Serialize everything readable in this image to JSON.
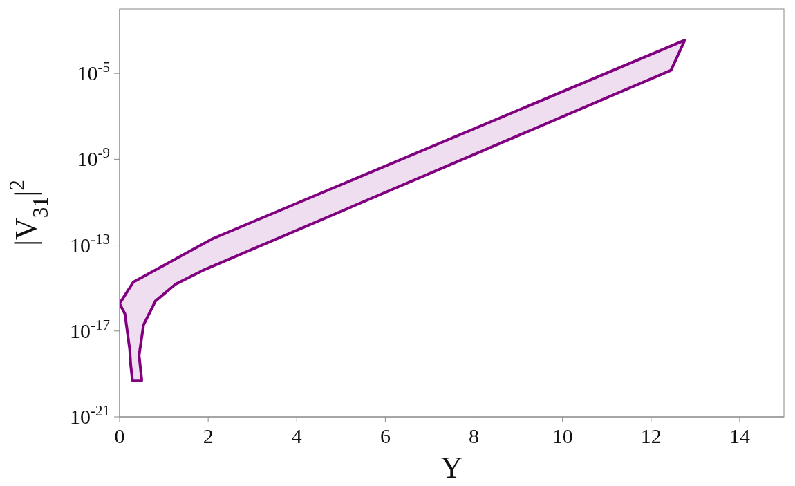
{
  "chart_data": {
    "type": "area",
    "xlabel": "Y",
    "ylabel": "|V$_{31}$|$^{2}$",
    "xlim": [
      0,
      15
    ],
    "xticks": [
      0,
      2,
      4,
      6,
      8,
      10,
      12,
      14
    ],
    "ylim": [
      1e-21,
      0.01
    ],
    "yticks": [
      {
        "value": 1e-21,
        "label": "10$^{-21}$"
      },
      {
        "value": 1e-17,
        "label": "10$^{-17}$"
      },
      {
        "value": 1e-13,
        "label": "10$^{-13}$"
      },
      {
        "value": 1e-09,
        "label": "10$^{-9}$"
      },
      {
        "value": 1e-05,
        "label": "10$^{-5}$"
      }
    ],
    "log": "y",
    "marker": "none",
    "line_style": "solid",
    "series": [
      {
        "color": "#800080",
        "x": [
          0,
          0.31,
          2.1,
          12.76,
          12.45,
          1.87,
          1.26,
          0.81,
          0.54,
          0.44,
          0.5,
          0.29,
          0.25,
          0.23,
          0.12,
          0
        ],
        "values": [
          1.9e-16,
          1.9e-15,
          2e-13,
          0.00035,
          1.4e-05,
          6.5e-15,
          1.5e-15,
          2.5e-16,
          1.9e-17,
          7.4e-19,
          5e-20,
          5e-20,
          2.7e-19,
          1.3e-18,
          6.3e-17,
          1.9e-16
        ]
      }
    ]
  }
}
